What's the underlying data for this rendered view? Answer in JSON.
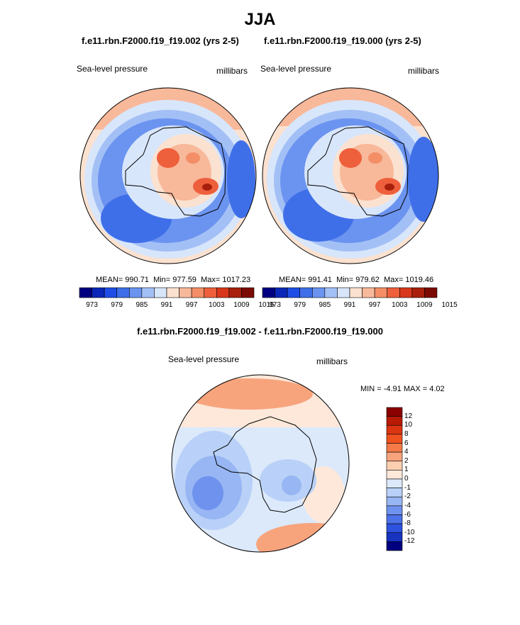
{
  "title": "JJA",
  "panels": [
    {
      "case": "f.e11.rbn.F2000.f19_f19.002 (yrs 2-5)",
      "variable": "Sea-level pressure",
      "units": "millibars",
      "stats": {
        "mean": "990.71",
        "min": "977.59",
        "max": "1017.23"
      }
    },
    {
      "case": "f.e11.rbn.F2000.f19_f19.000 (yrs 2-5)",
      "variable": "Sea-level pressure",
      "units": "millibars",
      "stats": {
        "mean": "991.41",
        "min": "979.62",
        "max": "1019.46"
      }
    }
  ],
  "stat_labels": {
    "mean": "MEAN=",
    "min": "Min=",
    "max": "Max="
  },
  "colorbar": {
    "colors": [
      "#000080",
      "#0a27b8",
      "#1f4ee6",
      "#3f6fe8",
      "#6b93f0",
      "#a3c0f6",
      "#d8e6fb",
      "#fbe1cf",
      "#f8b89a",
      "#f38e66",
      "#ee5f3c",
      "#d8371b",
      "#a8200c",
      "#7c0a04"
    ],
    "ticks": [
      "973",
      "979",
      "985",
      "991",
      "997",
      "1003",
      "1009",
      "1015"
    ]
  },
  "difference": {
    "title": "f.e11.rbn.F2000.f19_f19.002 - f.e11.rbn.F2000.f19_f19.000",
    "variable": "Sea-level pressure",
    "units": "millibars",
    "range_text": {
      "min_label": "MIN =",
      "min": "-4.91",
      "max_label": "MAX =",
      "max": "4.02"
    },
    "colorbar": {
      "colors": [
        "#8b0000",
        "#b81a05",
        "#dc3512",
        "#f0521f",
        "#f47a48",
        "#f7a47d",
        "#fbcfb0",
        "#fde8da",
        "#dce9fb",
        "#b9d1f8",
        "#97b6f3",
        "#6f92ee",
        "#4d72e8",
        "#2d52e0",
        "#1733c0",
        "#000080"
      ],
      "ticks": [
        "12",
        "10",
        "8",
        "6",
        "4",
        "2",
        "1",
        "0",
        "-1",
        "-2",
        "-4",
        "-6",
        "-8",
        "-10",
        "-12"
      ]
    }
  }
}
